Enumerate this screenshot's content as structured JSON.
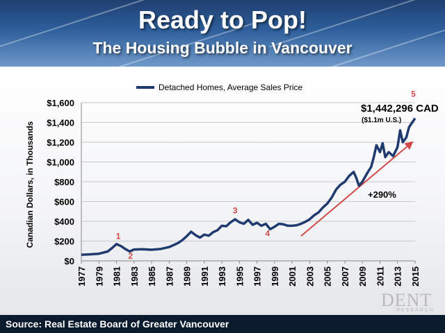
{
  "header": {
    "title": "Ready to Pop!",
    "subtitle": "The Housing Bubble in Vancouver"
  },
  "footer": {
    "source": "Source: Real Estate Board of Greater Vancouver"
  },
  "logo": {
    "text": "DENT",
    "subtext": "RESEARCH"
  },
  "colors": {
    "series": "#1f3a6e",
    "arrow": "#d04a4a",
    "markers": "#d04a4a"
  },
  "chart_data": {
    "type": "line",
    "title": "",
    "ylabel": "Canadian Dollars, in Thousands",
    "xlabel": "",
    "ylim": [
      0,
      1600
    ],
    "xlim": [
      1977,
      2015
    ],
    "grid": true,
    "legend_position": "top-center",
    "y_ticks": [
      "$0",
      "$200",
      "$400",
      "$600",
      "$800",
      "$1,000",
      "$1,200",
      "$1,400",
      "$1,600"
    ],
    "x_ticks": [
      "1977",
      "1979",
      "1981",
      "1983",
      "1985",
      "1987",
      "1989",
      "1991",
      "1993",
      "1995",
      "1997",
      "1999",
      "2001",
      "2003",
      "2005",
      "2007",
      "2009",
      "2011",
      "2013",
      "2015"
    ],
    "series": [
      {
        "name": "Detached Homes, Average Sales Price",
        "points": [
          [
            1977.0,
            62
          ],
          [
            1978.0,
            66
          ],
          [
            1979.0,
            72
          ],
          [
            1980.0,
            95
          ],
          [
            1980.5,
            130
          ],
          [
            1981.0,
            170
          ],
          [
            1981.5,
            150
          ],
          [
            1982.0,
            120
          ],
          [
            1982.5,
            95
          ],
          [
            1983.0,
            115
          ],
          [
            1984.0,
            118
          ],
          [
            1985.0,
            112
          ],
          [
            1986.0,
            120
          ],
          [
            1987.0,
            140
          ],
          [
            1988.0,
            180
          ],
          [
            1988.5,
            210
          ],
          [
            1989.0,
            250
          ],
          [
            1989.5,
            295
          ],
          [
            1990.0,
            260
          ],
          [
            1990.5,
            235
          ],
          [
            1991.0,
            265
          ],
          [
            1991.5,
            255
          ],
          [
            1992.0,
            290
          ],
          [
            1992.5,
            310
          ],
          [
            1993.0,
            355
          ],
          [
            1993.5,
            350
          ],
          [
            1994.0,
            390
          ],
          [
            1994.5,
            420
          ],
          [
            1995.0,
            390
          ],
          [
            1995.5,
            375
          ],
          [
            1996.0,
            415
          ],
          [
            1996.5,
            365
          ],
          [
            1997.0,
            385
          ],
          [
            1997.5,
            355
          ],
          [
            1998.0,
            375
          ],
          [
            1998.5,
            320
          ],
          [
            1999.0,
            345
          ],
          [
            1999.5,
            375
          ],
          [
            2000.0,
            370
          ],
          [
            2000.5,
            355
          ],
          [
            2001.0,
            355
          ],
          [
            2001.5,
            360
          ],
          [
            2002.0,
            375
          ],
          [
            2002.5,
            395
          ],
          [
            2003.0,
            420
          ],
          [
            2003.5,
            460
          ],
          [
            2004.0,
            490
          ],
          [
            2004.5,
            540
          ],
          [
            2005.0,
            580
          ],
          [
            2005.5,
            640
          ],
          [
            2006.0,
            720
          ],
          [
            2006.5,
            770
          ],
          [
            2007.0,
            800
          ],
          [
            2007.5,
            860
          ],
          [
            2008.0,
            900
          ],
          [
            2008.3,
            840
          ],
          [
            2008.6,
            760
          ],
          [
            2009.0,
            800
          ],
          [
            2009.5,
            880
          ],
          [
            2010.0,
            950
          ],
          [
            2010.3,
            1050
          ],
          [
            2010.6,
            1170
          ],
          [
            2011.0,
            1100
          ],
          [
            2011.3,
            1190
          ],
          [
            2011.6,
            1050
          ],
          [
            2012.0,
            1100
          ],
          [
            2012.5,
            1060
          ],
          [
            2013.0,
            1150
          ],
          [
            2013.3,
            1320
          ],
          [
            2013.6,
            1200
          ],
          [
            2014.0,
            1250
          ],
          [
            2014.3,
            1350
          ],
          [
            2014.6,
            1390
          ],
          [
            2015.0,
            1442
          ]
        ]
      }
    ],
    "annotations": [
      {
        "label": "1",
        "x": 1981.2,
        "y": 220
      },
      {
        "label": "2",
        "x": 1982.6,
        "y": 20
      },
      {
        "label": "3",
        "x": 1994.5,
        "y": 480
      },
      {
        "label": "4",
        "x": 1998.2,
        "y": 250
      },
      {
        "label": "5",
        "x": 2014.8,
        "y": 1660
      }
    ],
    "trend_arrow": {
      "from": [
        2002.0,
        250
      ],
      "to": [
        2014.8,
        1210
      ]
    },
    "callouts": {
      "price": "$1,442,296 CAD",
      "usd": "($1.1m U.S.)",
      "growth": "+290%"
    }
  }
}
